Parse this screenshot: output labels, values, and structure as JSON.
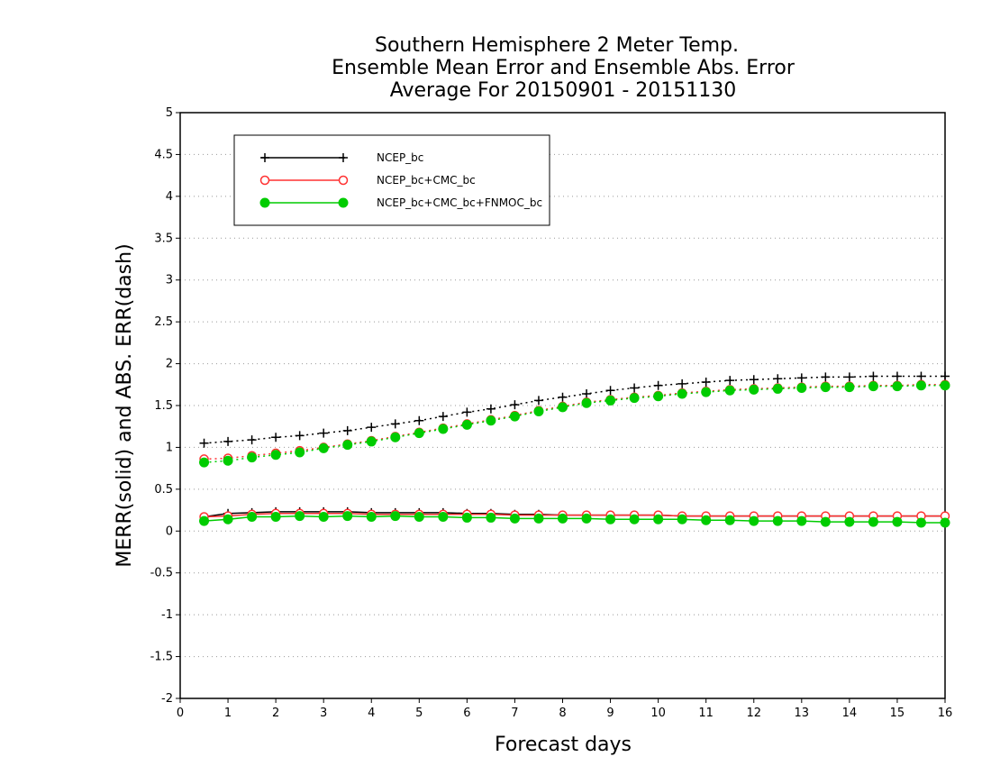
{
  "chart_data": {
    "type": "line",
    "title": [
      "Southern Hemisphere 2 Meter Temp.",
      "Ensemble Mean Error and Ensemble Abs. Error",
      "Average For 20150901 - 20151130"
    ],
    "xlabel": "Forecast days",
    "ylabel": "MERR(solid) and ABS. ERR(dash)",
    "xlim": [
      0,
      16
    ],
    "ylim": [
      -2,
      5
    ],
    "x_ticks": [
      0,
      1,
      2,
      3,
      4,
      5,
      6,
      7,
      8,
      9,
      10,
      11,
      12,
      13,
      14,
      15,
      16
    ],
    "y_ticks": [
      -2,
      -1.5,
      -1,
      -0.5,
      0,
      0.5,
      1,
      1.5,
      2,
      2.5,
      3,
      3.5,
      4,
      4.5,
      5
    ],
    "grid": "horizontal dotted",
    "legend_position": "top-left",
    "x": [
      0.5,
      1,
      1.5,
      2,
      2.5,
      3,
      3.5,
      4,
      4.5,
      5,
      5.5,
      6,
      6.5,
      7,
      7.5,
      8,
      8.5,
      9,
      9.5,
      10,
      10.5,
      11,
      11.5,
      12,
      12.5,
      13,
      13.5,
      14,
      14.5,
      15,
      15.5,
      16
    ],
    "series": [
      {
        "name": "NCEP_bc",
        "color": "#000000",
        "marker": "plus",
        "merr_solid": [
          0.17,
          0.21,
          0.22,
          0.23,
          0.23,
          0.23,
          0.23,
          0.22,
          0.22,
          0.22,
          0.22,
          0.21,
          0.21,
          0.2,
          0.2,
          0.19,
          0.19,
          0.19,
          0.19,
          0.19,
          0.18,
          0.18,
          0.18,
          0.18,
          0.18,
          0.18,
          0.18,
          0.18,
          0.18,
          0.18,
          0.18,
          0.18
        ],
        "abs_err_dash": [
          1.05,
          1.07,
          1.09,
          1.12,
          1.14,
          1.17,
          1.2,
          1.24,
          1.28,
          1.32,
          1.37,
          1.42,
          1.46,
          1.51,
          1.56,
          1.6,
          1.64,
          1.68,
          1.71,
          1.74,
          1.76,
          1.78,
          1.8,
          1.81,
          1.82,
          1.83,
          1.84,
          1.84,
          1.85,
          1.85,
          1.85,
          1.85
        ]
      },
      {
        "name": "NCEP_bc+CMC_bc",
        "color": "#ff3030",
        "marker": "open-circle",
        "merr_solid": [
          0.17,
          0.18,
          0.2,
          0.21,
          0.21,
          0.21,
          0.21,
          0.2,
          0.2,
          0.2,
          0.2,
          0.2,
          0.2,
          0.19,
          0.19,
          0.19,
          0.19,
          0.19,
          0.19,
          0.19,
          0.18,
          0.18,
          0.18,
          0.18,
          0.18,
          0.18,
          0.18,
          0.18,
          0.18,
          0.18,
          0.18,
          0.18
        ],
        "abs_err_dash": [
          0.86,
          0.87,
          0.9,
          0.93,
          0.96,
          1.0,
          1.04,
          1.08,
          1.13,
          1.18,
          1.23,
          1.28,
          1.33,
          1.38,
          1.44,
          1.49,
          1.54,
          1.57,
          1.6,
          1.62,
          1.65,
          1.67,
          1.69,
          1.7,
          1.71,
          1.72,
          1.73,
          1.73,
          1.74,
          1.74,
          1.75,
          1.75
        ]
      },
      {
        "name": "NCEP_bc+CMC_bc+FNMOC_bc",
        "color": "#00cc00",
        "marker": "filled-circle",
        "merr_solid": [
          0.12,
          0.14,
          0.17,
          0.17,
          0.18,
          0.17,
          0.18,
          0.17,
          0.18,
          0.17,
          0.17,
          0.16,
          0.16,
          0.15,
          0.15,
          0.15,
          0.15,
          0.14,
          0.14,
          0.14,
          0.14,
          0.13,
          0.13,
          0.12,
          0.12,
          0.12,
          0.11,
          0.11,
          0.11,
          0.11,
          0.1,
          0.1
        ],
        "abs_err_dash": [
          0.82,
          0.84,
          0.88,
          0.91,
          0.94,
          0.99,
          1.03,
          1.07,
          1.12,
          1.17,
          1.22,
          1.27,
          1.32,
          1.37,
          1.43,
          1.48,
          1.53,
          1.56,
          1.59,
          1.61,
          1.64,
          1.66,
          1.68,
          1.69,
          1.7,
          1.71,
          1.72,
          1.72,
          1.73,
          1.73,
          1.74,
          1.74
        ]
      }
    ]
  }
}
